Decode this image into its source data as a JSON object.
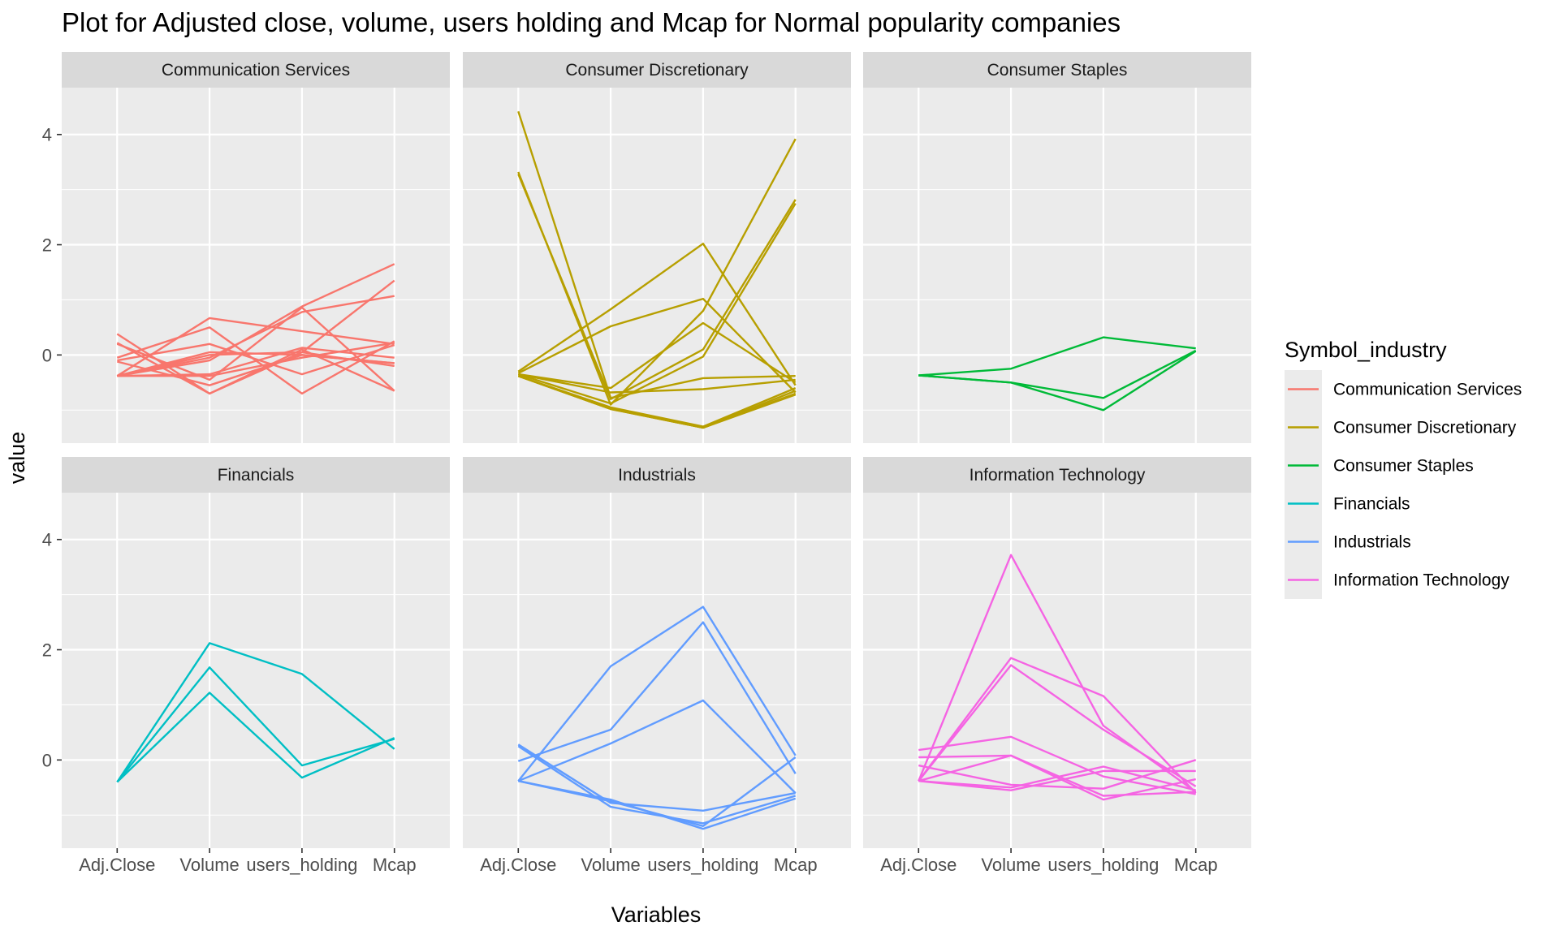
{
  "chart_data": {
    "type": "line",
    "title": "Plot for Adjusted close, volume, users holding and Mcap for Normal popularity companies",
    "xlabel": "Variables",
    "ylabel": "value",
    "x": [
      "Adj.Close",
      "Volume",
      "users_holding",
      "Mcap"
    ],
    "ylim": [
      -1.6,
      4.85
    ],
    "yticks": [
      0,
      2,
      4
    ],
    "grid": true,
    "legend": {
      "title": "Symbol_industry",
      "position": "right",
      "entries": [
        {
          "label": "Communication Services",
          "color": "#F8766D"
        },
        {
          "label": "Consumer Discretionary",
          "color": "#B79F00"
        },
        {
          "label": "Consumer Staples",
          "color": "#00BA38"
        },
        {
          "label": "Financials",
          "color": "#00BFC4"
        },
        {
          "label": "Industrials",
          "color": "#619CFF"
        },
        {
          "label": "Information Technology",
          "color": "#F564E3"
        }
      ]
    },
    "facets": [
      {
        "name": "Communication Services",
        "color": "#F8766D",
        "lines": [
          [
            -0.38,
            0.67,
            0.43,
            0.2
          ],
          [
            -0.38,
            -0.1,
            0.88,
            1.65
          ],
          [
            -0.38,
            -0.05,
            0.78,
            1.07
          ],
          [
            0.38,
            -0.7,
            0.05,
            1.35
          ],
          [
            0.22,
            -0.7,
            0.1,
            -0.65
          ],
          [
            0.2,
            -0.45,
            0.86,
            -0.65
          ],
          [
            -0.05,
            0.5,
            -0.7,
            0.25
          ],
          [
            -0.1,
            0.2,
            -0.35,
            0.18
          ],
          [
            -0.12,
            -0.55,
            0.0,
            -0.15
          ],
          [
            -0.38,
            -0.35,
            0.13,
            -0.05
          ],
          [
            -0.38,
            -0.38,
            -0.05,
            0.22
          ],
          [
            -0.38,
            0.0,
            0.05,
            -0.2
          ],
          [
            -0.38,
            0.05,
            0.0,
            -0.15
          ]
        ]
      },
      {
        "name": "Consumer Discretionary",
        "color": "#B79F00",
        "lines": [
          [
            4.42,
            -0.78,
            -0.42,
            -0.38
          ],
          [
            3.32,
            -0.9,
            0.8,
            3.92
          ],
          [
            3.28,
            -0.8,
            0.1,
            2.82
          ],
          [
            -0.3,
            0.83,
            2.02,
            -0.55
          ],
          [
            -0.33,
            0.52,
            1.02,
            -0.68
          ],
          [
            -0.35,
            -0.6,
            0.58,
            -0.5
          ],
          [
            -0.35,
            -0.68,
            -0.62,
            -0.45
          ],
          [
            -0.35,
            -0.88,
            -0.03,
            2.75
          ],
          [
            -0.38,
            -0.95,
            -1.3,
            -0.6
          ],
          [
            -0.38,
            -0.98,
            -1.32,
            -0.65
          ],
          [
            -0.38,
            -0.98,
            -1.32,
            -0.7
          ],
          [
            -0.38,
            -0.98,
            -1.32,
            -0.72
          ]
        ]
      },
      {
        "name": "Consumer Staples",
        "color": "#00BA38",
        "lines": [
          [
            -0.37,
            -0.25,
            0.32,
            0.12
          ],
          [
            -0.37,
            -0.5,
            -0.78,
            0.08
          ],
          [
            -0.37,
            -0.5,
            -1.0,
            0.07
          ]
        ]
      },
      {
        "name": "Financials",
        "color": "#00BFC4",
        "lines": [
          [
            -0.4,
            2.12,
            1.56,
            0.2
          ],
          [
            -0.4,
            1.68,
            -0.1,
            0.38
          ],
          [
            -0.4,
            1.22,
            -0.32,
            0.4
          ]
        ]
      },
      {
        "name": "Industrials",
        "color": "#619CFF",
        "lines": [
          [
            -0.38,
            1.7,
            2.78,
            0.08
          ],
          [
            -0.02,
            0.55,
            2.5,
            -0.25
          ],
          [
            -0.38,
            0.3,
            1.08,
            -0.6
          ],
          [
            0.28,
            -0.78,
            -0.92,
            -0.6
          ],
          [
            0.25,
            -0.85,
            -1.15,
            -0.65
          ],
          [
            -0.38,
            -0.75,
            -1.2,
            0.05
          ],
          [
            -0.38,
            -0.72,
            -1.25,
            -0.7
          ]
        ]
      },
      {
        "name": "Information Technology",
        "color": "#F564E3",
        "lines": [
          [
            -0.38,
            3.72,
            0.62,
            -0.58
          ],
          [
            -0.38,
            1.85,
            1.16,
            -0.6
          ],
          [
            -0.38,
            1.72,
            0.55,
            -0.48
          ],
          [
            0.18,
            0.42,
            -0.3,
            -0.62
          ],
          [
            0.05,
            0.08,
            -0.65,
            -0.58
          ],
          [
            -0.1,
            -0.45,
            -0.52,
            0.0
          ],
          [
            -0.38,
            -0.5,
            -0.12,
            -0.55
          ],
          [
            -0.38,
            0.08,
            -0.72,
            -0.35
          ],
          [
            -0.38,
            -0.55,
            -0.2,
            -0.2
          ]
        ]
      }
    ]
  }
}
